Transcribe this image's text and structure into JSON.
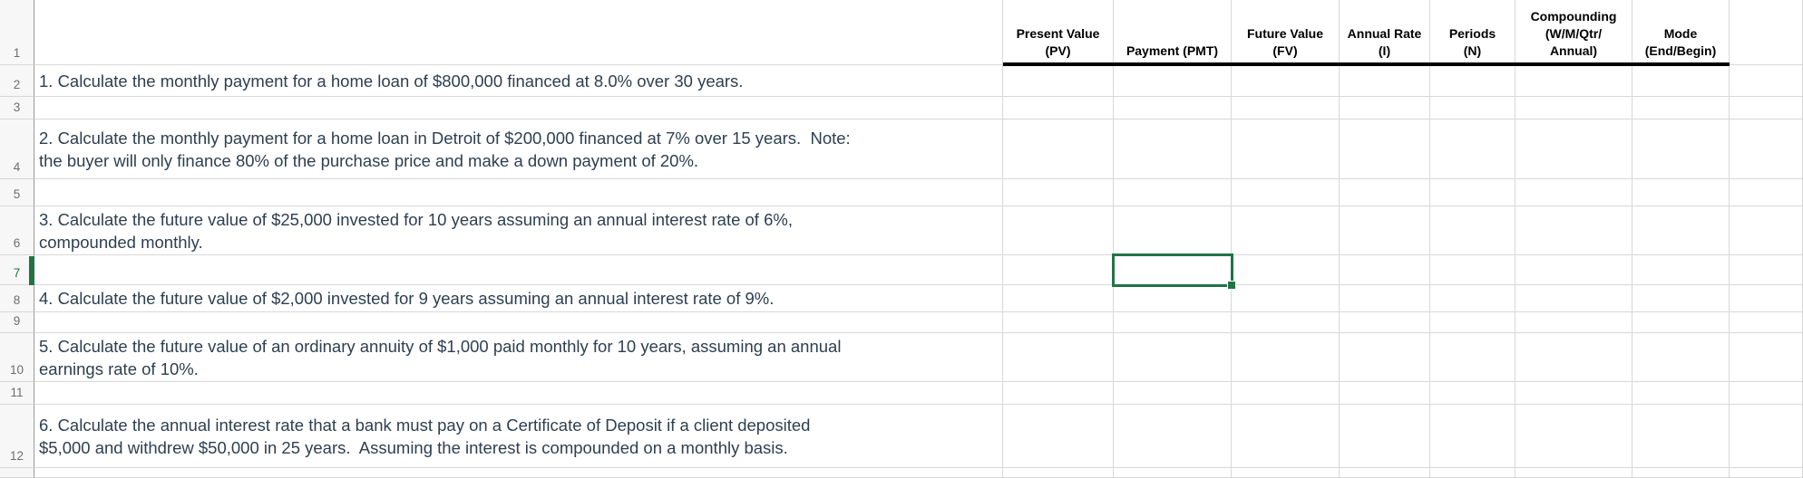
{
  "app": {
    "type": "spreadsheet-worksheet",
    "description": "Time-value-of-money practice worksheet grid"
  },
  "colors": {
    "selection_green": "#217346",
    "grid_line": "#d8d8d8",
    "gutter_border": "#9a9a9a",
    "gutter_background": "#f7f7f7",
    "header_underline": "#000000",
    "question_text": "#2e3f50",
    "row_number_text": "#6e6e6e"
  },
  "header": {
    "labels": [
      "Present Value\n(PV)",
      "Payment (PMT)",
      "Future Value\n(FV)",
      "Annual Rate\n(I)",
      "Periods\n(N)",
      "Compounding\n(W/M/Qtr/\nAnnual)",
      "Mode\n(End/Begin)"
    ]
  },
  "selection": {
    "row": 7,
    "column_header": "Payment (PMT)"
  },
  "rows": [
    {
      "num": "1",
      "text": ""
    },
    {
      "num": "2",
      "text": "1. Calculate the monthly payment for a home loan of $800,000 financed at 8.0% over 30 years."
    },
    {
      "num": "3",
      "text": ""
    },
    {
      "num": "4",
      "text": "2. Calculate the monthly payment for a home loan in Detroit of $200,000 financed at 7% over 15 years.  Note:\nthe buyer will only finance 80% of the purchase price and make a down payment of 20%."
    },
    {
      "num": "5",
      "text": ""
    },
    {
      "num": "6",
      "text": "3. Calculate the future value of $25,000 invested for 10 years assuming an annual interest rate of 6%,\ncompounded monthly."
    },
    {
      "num": "7",
      "text": ""
    },
    {
      "num": "8",
      "text": "4. Calculate the future value of $2,000 invested for 9 years assuming an annual interest rate of 9%."
    },
    {
      "num": "9",
      "text": ""
    },
    {
      "num": "10",
      "text": "5. Calculate the future value of an ordinary annuity of $1,000 paid monthly for 10 years, assuming an annual\nearnings rate of 10%."
    },
    {
      "num": "11",
      "text": ""
    },
    {
      "num": "12",
      "text": "6. Calculate the annual interest rate that a bank must pay on a Certificate of Deposit if a client deposited\n$5,000 and withdrew $50,000 in 25 years.  Assuming the interest is compounded on a monthly basis."
    },
    {
      "num": "",
      "text": ""
    }
  ]
}
